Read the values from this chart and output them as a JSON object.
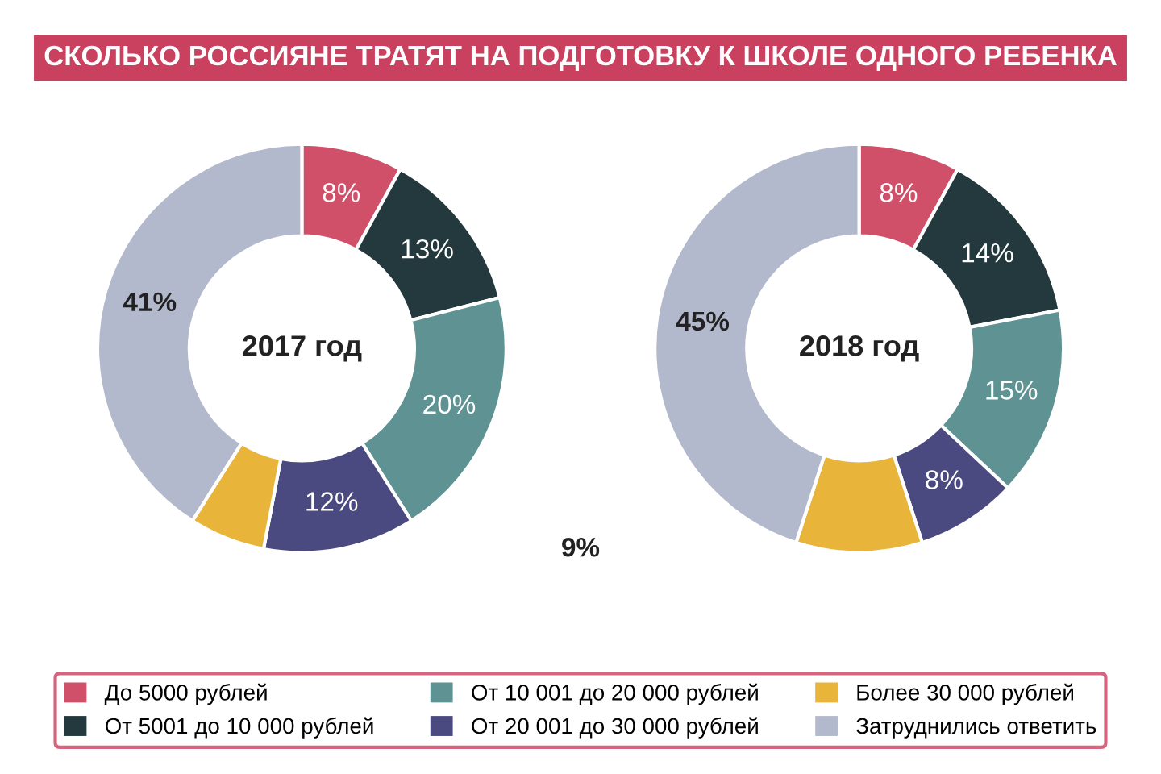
{
  "chart_data": [
    {
      "type": "donut",
      "title": "СКОЛЬКО РОССИЯНЕ ТРАТЯТ НА ПОДГОТОВКУ К ШКОЛЕ ОДНОГО РЕБЕНКА",
      "annotations": [
        "2017 год"
      ],
      "categories": [
        "До 5000 рублей",
        "От 5001 до 10 000 рублей",
        "От 10 001 до 20 000 рублей",
        "От 20 001 до 30 000 рублей",
        "Более 30 000 рублей",
        "Затруднились ответить"
      ],
      "values": [
        8,
        13,
        20,
        12,
        6,
        41
      ],
      "value_labels": [
        "8%",
        "13%",
        "20%",
        "12%",
        null,
        "41%"
      ],
      "colors": [
        "#d0506a",
        "#23393d",
        "#5f9393",
        "#4a4a80",
        "#e8b43a",
        "#b3b9cc"
      ],
      "legend": "bottom"
    },
    {
      "type": "donut",
      "annotations": [
        "2018 год",
        "9%"
      ],
      "categories": [
        null,
        null,
        null,
        null,
        null,
        null
      ],
      "values": [
        8,
        14,
        15,
        8,
        10,
        45
      ],
      "value_labels": [
        "8%",
        "14%",
        "15%",
        "8%",
        null,
        "45%"
      ],
      "colors": [
        "#d0506a",
        "#23393d",
        "#5f9393",
        "#4a4a80",
        "#e8b43a",
        "#b3b9cc"
      ]
    }
  ]
}
